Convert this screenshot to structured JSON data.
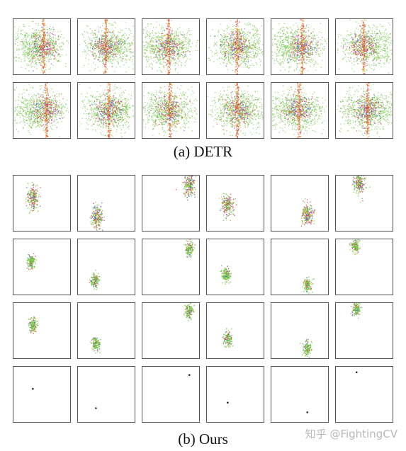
{
  "figure": {
    "caption_a": "(a) DETR",
    "caption_b": "(b) Ours",
    "watermark": "知乎 @FightingCV"
  },
  "panel_groups": [
    {
      "group": "detr",
      "rows": 2,
      "cols": 6,
      "content": "wide scatter of colored points across whole panel with a vertical band"
    },
    {
      "group": "ours",
      "rows": 4,
      "cols": 6,
      "content": "small compact clusters; last row single black dots"
    }
  ],
  "colors": {
    "green": "#6cc63f",
    "magenta": "#d33aa8",
    "blue": "#4a6fd6",
    "orange": "#e8a13a",
    "red": "#e0483a",
    "dot": "#222222",
    "frame": "#555555"
  }
}
